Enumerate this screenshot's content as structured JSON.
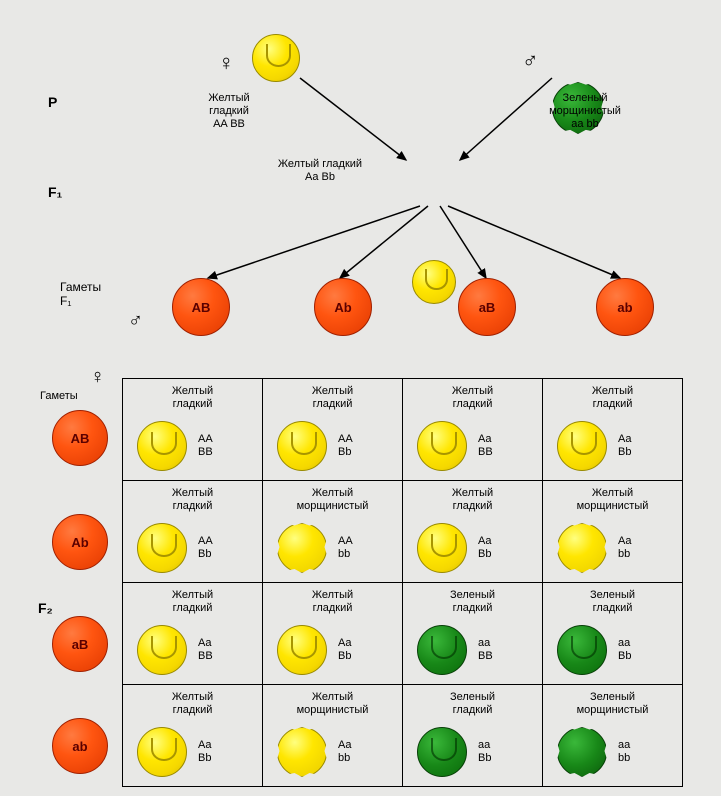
{
  "generation_labels": {
    "P": "P",
    "F1": "F₁",
    "gametes_F1": "Гаметы\nF₁",
    "F2": "F₂",
    "gametes_side": "Гаметы"
  },
  "symbols": {
    "female": "♀",
    "male": "♂"
  },
  "parents": {
    "female": {
      "phenotype_line1": "Желтый",
      "phenotype_line2": "гладкий",
      "genotype": "AA BB",
      "color_type": "yellow-smooth"
    },
    "male": {
      "phenotype_line1": "Зеленый",
      "phenotype_line2": "морщинистый",
      "genotype": "aa bb",
      "color_type": "green-wrinkled"
    }
  },
  "f1_hybrid": {
    "phenotype": "Желтый гладкий",
    "genotype": "Aa Bb",
    "color_type": "yellow-smooth"
  },
  "gametes": [
    "AB",
    "Ab",
    "aB",
    "ab"
  ],
  "punnett": {
    "row_headers": [
      "AB",
      "Ab",
      "aB",
      "ab"
    ],
    "cells": [
      [
        {
          "ph1": "Желтый",
          "ph2": "гладкий",
          "pea": "yellow-smooth",
          "g1": "AA",
          "g2": "BB"
        },
        {
          "ph1": "Желтый",
          "ph2": "гладкий",
          "pea": "yellow-smooth",
          "g1": "AA",
          "g2": "Bb"
        },
        {
          "ph1": "Желтый",
          "ph2": "гладкий",
          "pea": "yellow-smooth",
          "g1": "Aa",
          "g2": "BB"
        },
        {
          "ph1": "Желтый",
          "ph2": "гладкий",
          "pea": "yellow-smooth",
          "g1": "Aa",
          "g2": "Bb"
        }
      ],
      [
        {
          "ph1": "Желтый",
          "ph2": "гладкий",
          "pea": "yellow-smooth",
          "g1": "AA",
          "g2": "Bb"
        },
        {
          "ph1": "Желтый",
          "ph2": "морщинистый",
          "pea": "yellow-wrinkled",
          "g1": "AA",
          "g2": "bb"
        },
        {
          "ph1": "Желтый",
          "ph2": "гладкий",
          "pea": "yellow-smooth",
          "g1": "Aa",
          "g2": "Bb"
        },
        {
          "ph1": "Желтый",
          "ph2": "морщинистый",
          "pea": "yellow-wrinkled",
          "g1": "Aa",
          "g2": "bb"
        }
      ],
      [
        {
          "ph1": "Желтый",
          "ph2": "гладкий",
          "pea": "yellow-smooth",
          "g1": "Aa",
          "g2": "BB"
        },
        {
          "ph1": "Желтый",
          "ph2": "гладкий",
          "pea": "yellow-smooth",
          "g1": "Aa",
          "g2": "Bb"
        },
        {
          "ph1": "Зеленый",
          "ph2": "гладкий",
          "pea": "green-smooth",
          "g1": "aa",
          "g2": "BB"
        },
        {
          "ph1": "Зеленый",
          "ph2": "гладкий",
          "pea": "green-smooth",
          "g1": "aa",
          "g2": "Bb"
        }
      ],
      [
        {
          "ph1": "Желтый",
          "ph2": "гладкий",
          "pea": "yellow-smooth",
          "g1": "Aa",
          "g2": "Bb"
        },
        {
          "ph1": "Желтый",
          "ph2": "морщинистый",
          "pea": "yellow-wrinkled",
          "g1": "Aa",
          "g2": "bb"
        },
        {
          "ph1": "Зеленый",
          "ph2": "гладкий",
          "pea": "green-smooth",
          "g1": "aa",
          "g2": "Bb"
        },
        {
          "ph1": "Зеленый",
          "ph2": "морщинистый",
          "pea": "green-wrinkled",
          "g1": "aa",
          "g2": "bb"
        }
      ]
    ]
  },
  "colors": {
    "background": "#e8e8e6",
    "gamete_fill": "#ff5510",
    "yellow": "#ffe600",
    "green": "#188818",
    "arrow": "#000000"
  },
  "layout": {
    "pea_parent_size": 48,
    "pea_f1_size": 44,
    "gamete_size": 56,
    "gamete_row_size": 58,
    "cell_pea_size": 50
  }
}
